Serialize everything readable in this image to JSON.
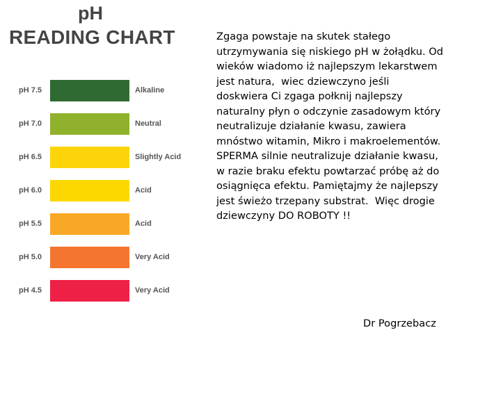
{
  "chart": {
    "title_line1": "pH",
    "title_line2": "READING CHART",
    "rows": [
      {
        "ph": "pH 7.5",
        "label": "Alkaline",
        "color": "#2f6a32"
      },
      {
        "ph": "pH 7.0",
        "label": "Neutral",
        "color": "#8fb12c"
      },
      {
        "ph": "pH 6.5",
        "label": "Slightly Acid",
        "color": "#fcd409"
      },
      {
        "ph": "pH 6.0",
        "label": "Acid",
        "color": "#fdd800"
      },
      {
        "ph": "pH 5.5",
        "label": "Acid",
        "color": "#f9a826"
      },
      {
        "ph": "pH 5.0",
        "label": "Very Acid",
        "color": "#f47530"
      },
      {
        "ph": "pH 4.5",
        "label": "Very Acid",
        "color": "#ee2045"
      }
    ]
  },
  "text": {
    "lines": [
      "Zgaga powstaje na skutek stałego",
      "utrzymywania się niskiego pH w żołądku. Od",
      "wieków wiadomo iż najlepszym lekarstwem",
      "jest natura,  wiec dziewczyno jeśli",
      "doskwiera Ci zgaga połknij najlepszy",
      "naturalny płyn o odczynie zasadowym który",
      "neutralizuje działanie kwasu, zawiera",
      "mnóstwo witamin, Mikro i makroelementów.",
      "SPERMA silnie neutralizuje działanie kwasu,",
      "w razie braku efektu powtarzać próbę aż do",
      "osiągnięca efektu. Pamiętajmy że najlepszy",
      "jest świeżo trzepany substrat.  Więc drogie",
      "dziewczyny DO ROBOTY !!"
    ],
    "signature": "Dr Pogrzebacz"
  }
}
